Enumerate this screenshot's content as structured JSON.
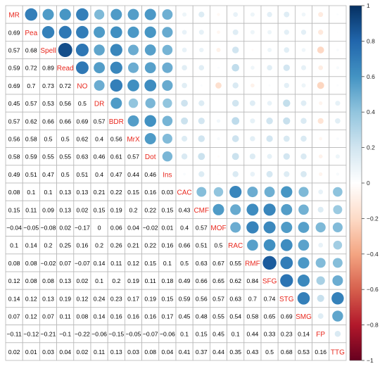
{
  "chart_data": {
    "type": "heatmap",
    "title": "",
    "variables": [
      "MR",
      "Pea",
      "Spell",
      "Read",
      "NO",
      "DR",
      "BDR",
      "MrX",
      "Dot",
      "Ins",
      "CAC",
      "CMF",
      "MOF",
      "RAC",
      "RMF",
      "SFG",
      "STG",
      "SMG",
      "FP",
      "TTG"
    ],
    "lower_triangle_values": [
      [],
      [
        "0.69"
      ],
      [
        "0.57",
        "0.68"
      ],
      [
        "0.59",
        "0.72",
        "0.89"
      ],
      [
        "0.69",
        "0.7",
        "0.73",
        "0.72"
      ],
      [
        "0.45",
        "0.57",
        "0.53",
        "0.56",
        "0.5"
      ],
      [
        "0.57",
        "0.62",
        "0.66",
        "0.66",
        "0.69",
        "0.57"
      ],
      [
        "0.56",
        "0.58",
        "0.5",
        "0.5",
        "0.62",
        "0.4",
        "0.56"
      ],
      [
        "0.58",
        "0.59",
        "0.55",
        "0.55",
        "0.63",
        "0.46",
        "0.61",
        "0.57"
      ],
      [
        "0.49",
        "0.51",
        "0.47",
        "0.5",
        "0.51",
        "0.4",
        "0.47",
        "0.44",
        "0.46"
      ],
      [
        "0.08",
        "0.1",
        "0.1",
        "0.13",
        "0.13",
        "0.21",
        "0.22",
        "0.15",
        "0.16",
        "0.03"
      ],
      [
        "0.15",
        "0.11",
        "0.09",
        "0.13",
        "0.02",
        "0.15",
        "0.19",
        "0.2",
        "0.22",
        "0.15",
        "0.43"
      ],
      [
        "−0.04",
        "−0.05",
        "−0.08",
        "0.02",
        "−0.17",
        "0",
        "0.06",
        "0.04",
        "−0.02",
        "0.01",
        "0.4",
        "0.57"
      ],
      [
        "0.1",
        "0.14",
        "0.2",
        "0.25",
        "0.16",
        "0.2",
        "0.26",
        "0.21",
        "0.22",
        "0.16",
        "0.66",
        "0.51",
        "0.5"
      ],
      [
        "0.08",
        "0.08",
        "−0.02",
        "0.07",
        "−0.07",
        "0.14",
        "0.11",
        "0.12",
        "0.15",
        "0.1",
        "0.5",
        "0.63",
        "0.67",
        "0.55"
      ],
      [
        "0.12",
        "0.08",
        "0.08",
        "0.13",
        "0.02",
        "0.1",
        "0.2",
        "0.19",
        "0.11",
        "0.18",
        "0.49",
        "0.66",
        "0.65",
        "0.62",
        "0.84"
      ],
      [
        "0.14",
        "0.12",
        "0.13",
        "0.19",
        "0.12",
        "0.24",
        "0.23",
        "0.17",
        "0.19",
        "0.15",
        "0.59",
        "0.56",
        "0.57",
        "0.63",
        "0.7",
        "0.74"
      ],
      [
        "0.07",
        "0.12",
        "0.07",
        "0.11",
        "0.08",
        "0.14",
        "0.16",
        "0.16",
        "0.16",
        "0.17",
        "0.45",
        "0.48",
        "0.55",
        "0.54",
        "0.58",
        "0.65",
        "0.69"
      ],
      [
        "−0.11",
        "−0.12",
        "−0.21",
        "−0.1",
        "−0.22",
        "−0.06",
        "−0.15",
        "−0.05",
        "−0.07",
        "−0.06",
        "0.1",
        "0.15",
        "0.45",
        "0.1",
        "0.44",
        "0.33",
        "0.23",
        "0.14"
      ],
      [
        "0.02",
        "0.01",
        "0.03",
        "0.04",
        "0.02",
        "0.11",
        "0.13",
        "0.03",
        "0.08",
        "0.04",
        "0.41",
        "0.37",
        "0.44",
        "0.35",
        "0.43",
        "0.5",
        "0.68",
        "0.53",
        "0.16"
      ]
    ],
    "colorbar": {
      "range": [
        -1,
        1
      ],
      "tick_labels": [
        "1",
        "0.8",
        "0.6",
        "0.4",
        "0.2",
        "0",
        "−0.2",
        "−0.4",
        "−0.6",
        "−0.8",
        "−1"
      ],
      "colors": {
        "negative": "#67001F",
        "zero": "#FFFFFF",
        "positive": "#053061"
      }
    },
    "colors": {
      "label": "#E8281E",
      "grid": "#B8B8B8",
      "number": "#000000"
    }
  }
}
